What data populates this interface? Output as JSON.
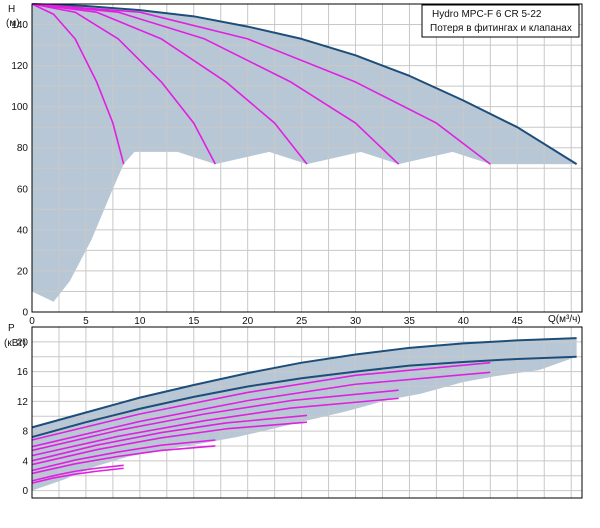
{
  "colors": {
    "envelope_fill": "#b8c7d6",
    "max_curve": "#1d4e7a",
    "stage_curve": "#e020e0",
    "grid": "#c8c8c8",
    "frame": "#000000"
  },
  "legend": {
    "line1": "Hydro  MPC-F 6  CR 5-22",
    "line2": "Потеря в фитингах и клапанах"
  },
  "chart_data": [
    {
      "type": "line",
      "ylabel_line1": "H",
      "ylabel_line2": "(м)",
      "xlabel": "Q(м³/ч)",
      "xlim": [
        0,
        51
      ],
      "ylim": [
        0,
        150
      ],
      "grid": true,
      "xticks": [
        "0",
        "5",
        "10",
        "15",
        "20",
        "25",
        "30",
        "35",
        "40",
        "45"
      ],
      "yticks": [
        "0",
        "20",
        "40",
        "60",
        "80",
        "100",
        "120",
        "140"
      ],
      "series": [
        {
          "role": "max",
          "x": [
            0,
            5,
            10,
            15,
            20,
            25,
            30,
            35,
            40,
            45,
            50.5
          ],
          "y": [
            150,
            149,
            147,
            144,
            139,
            133,
            125,
            115,
            103,
            90,
            72
          ]
        },
        {
          "role": "stage",
          "x": [
            0,
            2,
            4,
            6,
            7.5,
            8.5
          ],
          "y": [
            150,
            145,
            133,
            112,
            92,
            72
          ]
        },
        {
          "role": "stage",
          "x": [
            0,
            4,
            8,
            12,
            15,
            17
          ],
          "y": [
            150,
            146,
            133,
            112,
            92,
            72
          ]
        },
        {
          "role": "stage",
          "x": [
            0,
            6,
            12,
            18,
            22.5,
            25.5
          ],
          "y": [
            150,
            146,
            133,
            112,
            92,
            72
          ]
        },
        {
          "role": "stage",
          "x": [
            0,
            8,
            16,
            24,
            30,
            34
          ],
          "y": [
            150,
            146,
            133,
            112,
            92,
            72
          ]
        },
        {
          "role": "stage",
          "x": [
            0,
            10,
            20,
            30,
            37.5,
            42.5
          ],
          "y": [
            150,
            146,
            133,
            112,
            92,
            72
          ]
        }
      ]
    },
    {
      "type": "line",
      "ylabel_line1": "P",
      "ylabel_line2": "(кВт)",
      "xlim": [
        0,
        51
      ],
      "ylim": [
        -1,
        22
      ],
      "grid": true,
      "yticks": [
        "0",
        "4",
        "8",
        "12",
        "16",
        "20"
      ],
      "series": [
        {
          "role": "max",
          "x": [
            0,
            5,
            10,
            15,
            20,
            25,
            30,
            35,
            40,
            45,
            50.5
          ],
          "y": [
            8.5,
            10.5,
            12.5,
            14.2,
            15.8,
            17.2,
            18.3,
            19.2,
            19.8,
            20.2,
            20.5
          ]
        },
        {
          "role": "max",
          "x": [
            0,
            5,
            10,
            15,
            20,
            25,
            30,
            35,
            40,
            45,
            50.5
          ],
          "y": [
            7.2,
            9.2,
            11,
            12.6,
            14,
            15.1,
            16,
            16.8,
            17.3,
            17.7,
            18
          ]
        },
        {
          "role": "stage",
          "x": [
            0,
            10,
            20,
            30,
            42.5
          ],
          "y": [
            6.8,
            10.3,
            13.2,
            15.5,
            17.2
          ]
        },
        {
          "role": "stage",
          "x": [
            0,
            10,
            20,
            30,
            42.5
          ],
          "y": [
            5.9,
            9.3,
            12.1,
            14.3,
            15.9
          ]
        },
        {
          "role": "stage",
          "x": [
            0,
            8,
            16,
            24,
            34
          ],
          "y": [
            5.4,
            8.1,
            10.3,
            12.1,
            13.5
          ]
        },
        {
          "role": "stage",
          "x": [
            0,
            8,
            16,
            24,
            34
          ],
          "y": [
            4.7,
            7.3,
            9.4,
            11.1,
            12.4
          ]
        },
        {
          "role": "stage",
          "x": [
            0,
            6,
            12,
            18,
            25.5
          ],
          "y": [
            4.0,
            6.1,
            7.8,
            9.1,
            10.1
          ]
        },
        {
          "role": "stage",
          "x": [
            0,
            6,
            12,
            18,
            25.5
          ],
          "y": [
            3.5,
            5.5,
            7.1,
            8.3,
            9.2
          ]
        },
        {
          "role": "stage",
          "x": [
            0,
            4,
            8,
            12,
            17
          ],
          "y": [
            2.7,
            4.1,
            5.2,
            6.1,
            6.8
          ]
        },
        {
          "role": "stage",
          "x": [
            0,
            4,
            8,
            12,
            17
          ],
          "y": [
            2.3,
            3.6,
            4.6,
            5.4,
            6.0
          ]
        },
        {
          "role": "stage",
          "x": [
            0,
            2,
            4,
            6,
            8.5
          ],
          "y": [
            1.3,
            2.0,
            2.6,
            3.0,
            3.4
          ]
        },
        {
          "role": "stage",
          "x": [
            0,
            2,
            4,
            6,
            8.5
          ],
          "y": [
            1.0,
            1.7,
            2.2,
            2.6,
            3.0
          ]
        }
      ]
    }
  ]
}
